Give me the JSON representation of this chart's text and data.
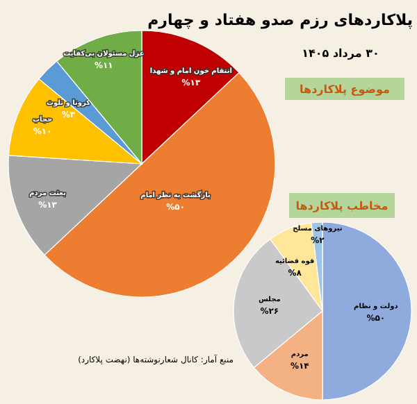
{
  "chart_data": [
    {
      "type": "pie",
      "title": "پلاکاردهای رزم صدو هفتاد و چهارم",
      "subtitle": "۳۰ مرداد ۱۴۰۵",
      "legend_title": "موضوع پلاکاردها",
      "categories": [
        "انتقام خون امام و شهدا",
        "بازگشت به نظر امام",
        "بعثت مردم",
        "حجاب",
        "کرونا و تلوث",
        "عزل مسئولان بی‌کفایت"
      ],
      "values": [
        13,
        50,
        13,
        10,
        3,
        11
      ],
      "value_labels": [
        "%۱۳",
        "%۵۰",
        "%۱۳",
        "%۱۰",
        "%۳",
        "%۱۱"
      ],
      "colors": [
        "#c00000",
        "#ed7d31",
        "#a5a5a5",
        "#ffc000",
        "#5b9bd5",
        "#70ad47"
      ],
      "annotations": [
        "منبع آمار: کانال شعارنوشته‌ها (نهضت پلاکارد)"
      ]
    },
    {
      "type": "pie",
      "legend_title": "مخاطب پلاکاردها",
      "categories": [
        "دولت و نظام",
        "مردم",
        "مجلس",
        "قوه قضائیه",
        "نیروهای مسلح"
      ],
      "values": [
        50,
        14,
        26,
        8,
        2
      ],
      "value_labels": [
        "%۵۰",
        "%۱۴",
        "%۲۶",
        "%۸",
        "%۲"
      ],
      "colors": [
        "#8faadc",
        "#f4b183",
        "#c9c9c9",
        "#ffe699",
        "#9dc3e6"
      ]
    }
  ]
}
